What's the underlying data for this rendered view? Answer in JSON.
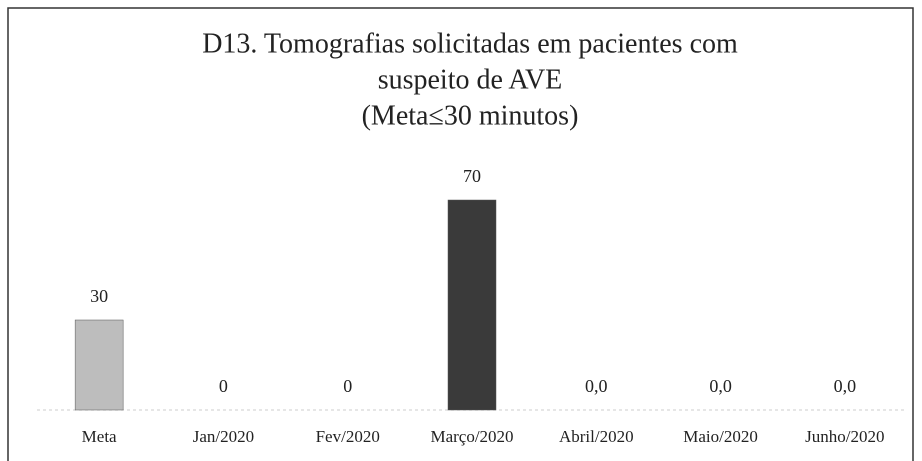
{
  "chart_data": {
    "type": "bar",
    "title": [
      "D13. Tomografias solicitadas em pacientes com",
      "suspeito de AVE",
      "(Meta≤30 minutos)"
    ],
    "categories": [
      "Meta",
      "Jan/2020",
      "Fev/2020",
      "Março/2020",
      "Abril/2020",
      "Maio/2020",
      "Junho/2020"
    ],
    "values": [
      30,
      0,
      0,
      70,
      0,
      0,
      0
    ],
    "value_labels": [
      "30",
      "0",
      "0",
      "70",
      "0,0",
      "0,0",
      "0,0"
    ],
    "colors": [
      "#bdbdbd",
      "#3a3a3a",
      "#3a3a3a",
      "#3a3a3a",
      "#3a3a3a",
      "#3a3a3a",
      "#3a3a3a"
    ],
    "ylim": [
      0,
      80
    ]
  }
}
